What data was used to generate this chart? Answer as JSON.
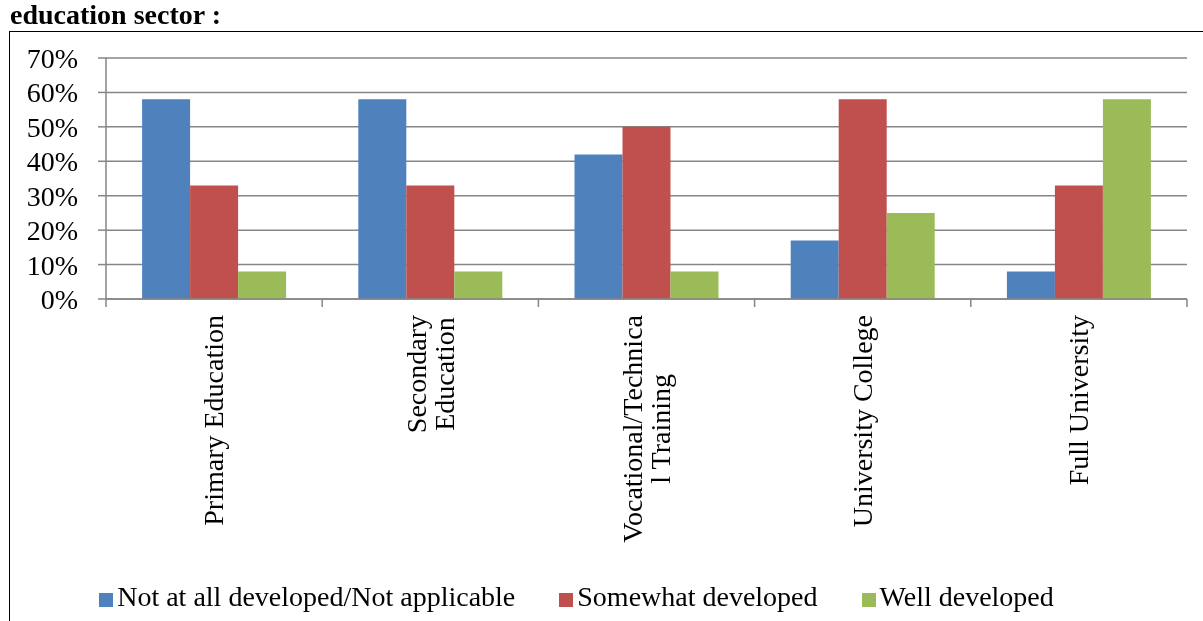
{
  "chart_data": {
    "type": "bar",
    "title": "education sector :",
    "categories": [
      "Primary Education",
      "Secondary\nEducation",
      "Vocational/Technica\nl Training",
      "University College",
      "Full University"
    ],
    "series": [
      {
        "name": "Not at all developed/Not applicable",
        "color": "#4f81bd",
        "values": [
          58,
          58,
          42,
          17,
          8
        ]
      },
      {
        "name": "Somewhat developed",
        "color": "#c0504d",
        "values": [
          33,
          33,
          50,
          58,
          33
        ]
      },
      {
        "name": "Well developed",
        "color": "#9bbb59",
        "values": [
          8,
          8,
          8,
          25,
          58
        ]
      }
    ],
    "ylim": [
      0,
      70
    ],
    "yticks": [
      {
        "value": 0,
        "label": "0%"
      },
      {
        "value": 10,
        "label": "10%"
      },
      {
        "value": 20,
        "label": "20%"
      },
      {
        "value": 30,
        "label": "30%"
      },
      {
        "value": 40,
        "label": "40%"
      },
      {
        "value": 50,
        "label": "50%"
      },
      {
        "value": 60,
        "label": "60%"
      },
      {
        "value": 70,
        "label": "70%"
      }
    ],
    "grid": "y",
    "legend": "bottom"
  }
}
